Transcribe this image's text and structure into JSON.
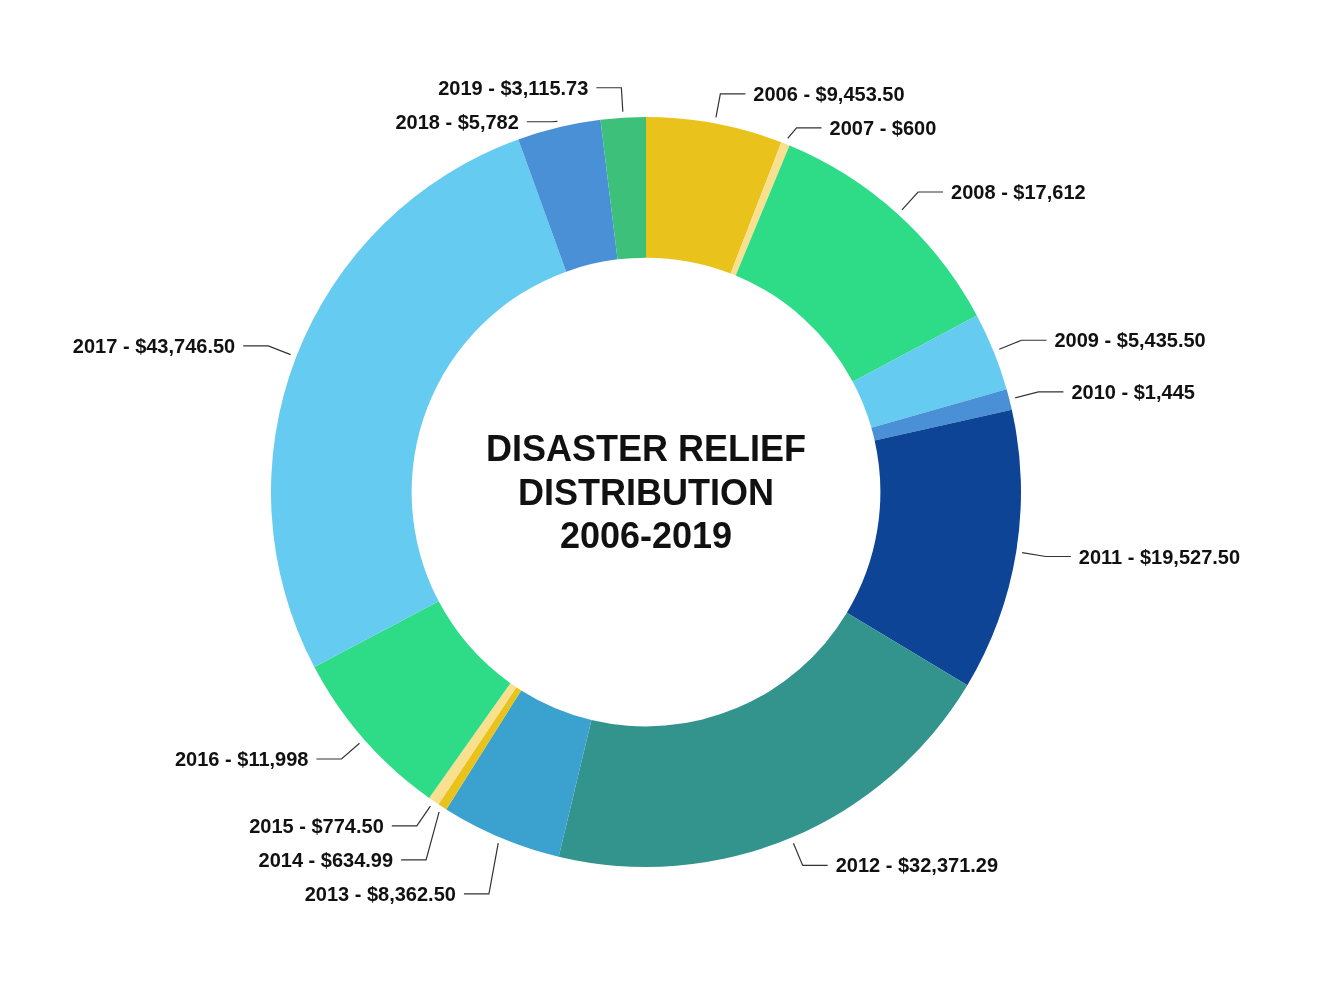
{
  "chart_data": {
    "type": "donut",
    "title": "DISASTER RELIEF\nDISTRIBUTION\n2006-2019",
    "categories": [
      "2006",
      "2007",
      "2008",
      "2009",
      "2010",
      "2011",
      "2012",
      "2013",
      "2014",
      "2015",
      "2016",
      "2017",
      "2018",
      "2019"
    ],
    "values": [
      9453.5,
      600,
      17612,
      5435.5,
      1445,
      19527.5,
      32371.29,
      8362.5,
      634.99,
      774.5,
      11998,
      43746.5,
      5782,
      3115.73
    ],
    "value_labels": [
      "$9,453.50",
      "$600",
      "$17,612",
      "$5,435.50",
      "$1,445",
      "$19,527.50",
      "$32,371.29",
      "$8,362.50",
      "$634.99",
      "$774.50",
      "$11,998",
      "$43,746.50",
      "$5,782",
      "$3,115.73"
    ],
    "colors": [
      "#e9c31c",
      "#f8e08e",
      "#2edb87",
      "#66cbf0",
      "#4a90d6",
      "#0d4496",
      "#33948d",
      "#3ba2cf",
      "#e9c31c",
      "#f8e08e",
      "#2edb87",
      "#66cbf0",
      "#4a90d6",
      "#3cc07a"
    ]
  }
}
